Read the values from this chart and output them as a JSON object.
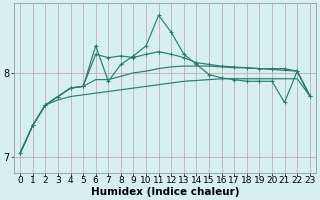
{
  "x": [
    0,
    1,
    2,
    3,
    4,
    5,
    6,
    7,
    8,
    9,
    10,
    11,
    12,
    13,
    14,
    15,
    16,
    17,
    18,
    19,
    20,
    21,
    22,
    23
  ],
  "line_spiky": [
    7.05,
    7.38,
    7.62,
    7.72,
    7.82,
    7.84,
    8.32,
    7.9,
    8.1,
    8.2,
    8.32,
    8.68,
    8.48,
    8.22,
    8.1,
    7.98,
    7.94,
    7.92,
    7.9,
    7.9,
    7.9,
    7.65,
    8.02,
    7.73
  ],
  "line_upper": [
    7.05,
    7.38,
    7.62,
    7.72,
    7.82,
    7.84,
    8.22,
    8.18,
    8.2,
    8.18,
    8.22,
    8.25,
    8.22,
    8.18,
    8.12,
    8.1,
    8.08,
    8.07,
    8.06,
    8.05,
    8.05,
    8.05,
    8.02,
    7.73
  ],
  "line_mid1": [
    7.05,
    7.38,
    7.62,
    7.72,
    7.82,
    7.84,
    7.92,
    7.92,
    7.96,
    8.0,
    8.02,
    8.05,
    8.07,
    8.08,
    8.08,
    8.08,
    8.07,
    8.06,
    8.06,
    8.05,
    8.04,
    8.03,
    8.02,
    7.73
  ],
  "line_flat": [
    7.05,
    7.38,
    7.62,
    7.68,
    7.72,
    7.74,
    7.76,
    7.78,
    7.8,
    7.82,
    7.84,
    7.86,
    7.88,
    7.9,
    7.91,
    7.92,
    7.93,
    7.93,
    7.93,
    7.93,
    7.93,
    7.93,
    7.93,
    7.73
  ],
  "bg_color": "#d6f0ef",
  "line_color": "#2a7d6e",
  "grid_color_v": "#c8e8e4",
  "grid_color_h": "#c0a0a0",
  "ylim_min": 6.82,
  "ylim_max": 8.82,
  "yticks": [
    7,
    8
  ],
  "xlabel": "Humidex (Indice chaleur)",
  "xlabel_fontsize": 7.5,
  "tick_fontsize": 6.5,
  "marker_size": 3.0,
  "lw": 0.85
}
